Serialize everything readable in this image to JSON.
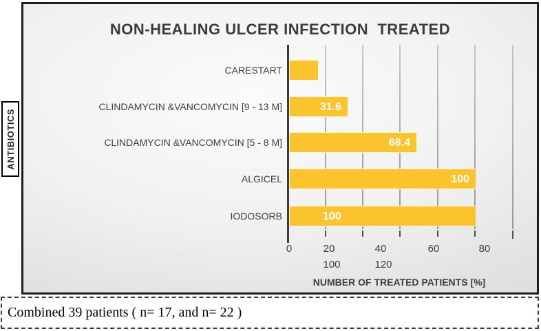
{
  "chart_data": {
    "type": "bar",
    "orientation": "horizontal",
    "title": "NON-HEALING ULCER INFECTION  TREATED",
    "ylabel": "ANTIBIOTICS",
    "xlabel": "NUMBER OF TREATED PATIENTS [%]",
    "categories": [
      "CARESTART",
      "CLINDAMYCIN &VANCOMYCIN [9 - 13 M]",
      "CLINDAMYCIN &VANCOMYCIN [5 - 8 M]",
      "ALGICEL",
      "IODOSORB"
    ],
    "values": [
      15.8,
      31.6,
      68.4,
      100,
      100
    ],
    "bar_labels": [
      "",
      "31.6",
      "68.4",
      "100",
      "100"
    ],
    "x_ticks_row1": [
      "0",
      "20",
      "40",
      "60",
      "80"
    ],
    "x_ticks_row2": [
      "100",
      "120"
    ],
    "xlim": [
      0,
      120
    ],
    "grid": true,
    "legend": "none",
    "bar_color": "#FBC32C"
  },
  "caption": {
    "text": "Combined 39 patients ( n= 17, and n= 22 )"
  }
}
